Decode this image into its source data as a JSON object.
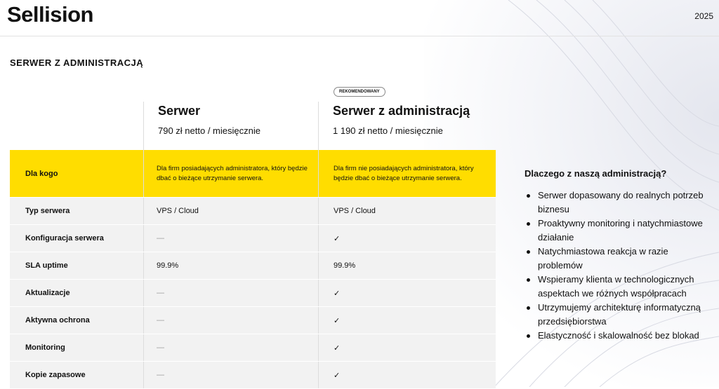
{
  "header": {
    "logo": "Sellision",
    "year": "2025"
  },
  "section_title": "SERWER Z ADMINISTRACJĄ",
  "badge": "REKOMENDOWANY",
  "plans": [
    {
      "name": "Serwer",
      "price": "790 zł netto / miesięcznie"
    },
    {
      "name": "Serwer z administracją",
      "price": "1 190 zł netto / miesięcznie",
      "recommended": true
    }
  ],
  "rows": [
    {
      "label": "Dla kogo",
      "a": "Dla firm posiadających administratora, który będzie dbać o bieżące utrzymanie serwera.",
      "b": "Dla firm nie posiadających administratora, który będzie dbać o bieżące utrzymanie serwera."
    },
    {
      "label": "Typ serwera",
      "a": "VPS / Cloud",
      "b": "VPS / Cloud"
    },
    {
      "label": "Konfiguracja serwera",
      "a": "—",
      "b": "✓"
    },
    {
      "label": "SLA uptime",
      "a": "99.9%",
      "b": "99.9%"
    },
    {
      "label": "Aktualizacje",
      "a": "—",
      "b": "✓"
    },
    {
      "label": "Aktywna ochrona",
      "a": "—",
      "b": "✓"
    },
    {
      "label": "Monitoring",
      "a": "—",
      "b": "✓"
    },
    {
      "label": "Kopie zapasowe",
      "a": "—",
      "b": "✓"
    }
  ],
  "side": {
    "title": "Dlaczego z naszą administracją?",
    "items": [
      "Serwer dopasowany do realnych potrzeb biznesu",
      "Proaktywny monitoring i natychmiastowe działanie",
      "Natychmiastowa reakcja w razie problemów",
      "Wspieramy klienta w technologicznych aspektach we różnych współpracach",
      "Utrzymujemy architekturę informatyczną przedsiębiorstwa",
      "Elastyczność i skalowalność bez blokad"
    ]
  },
  "colors": {
    "highlight": "#ffdd00",
    "row_bg": "#f2f2f2"
  }
}
